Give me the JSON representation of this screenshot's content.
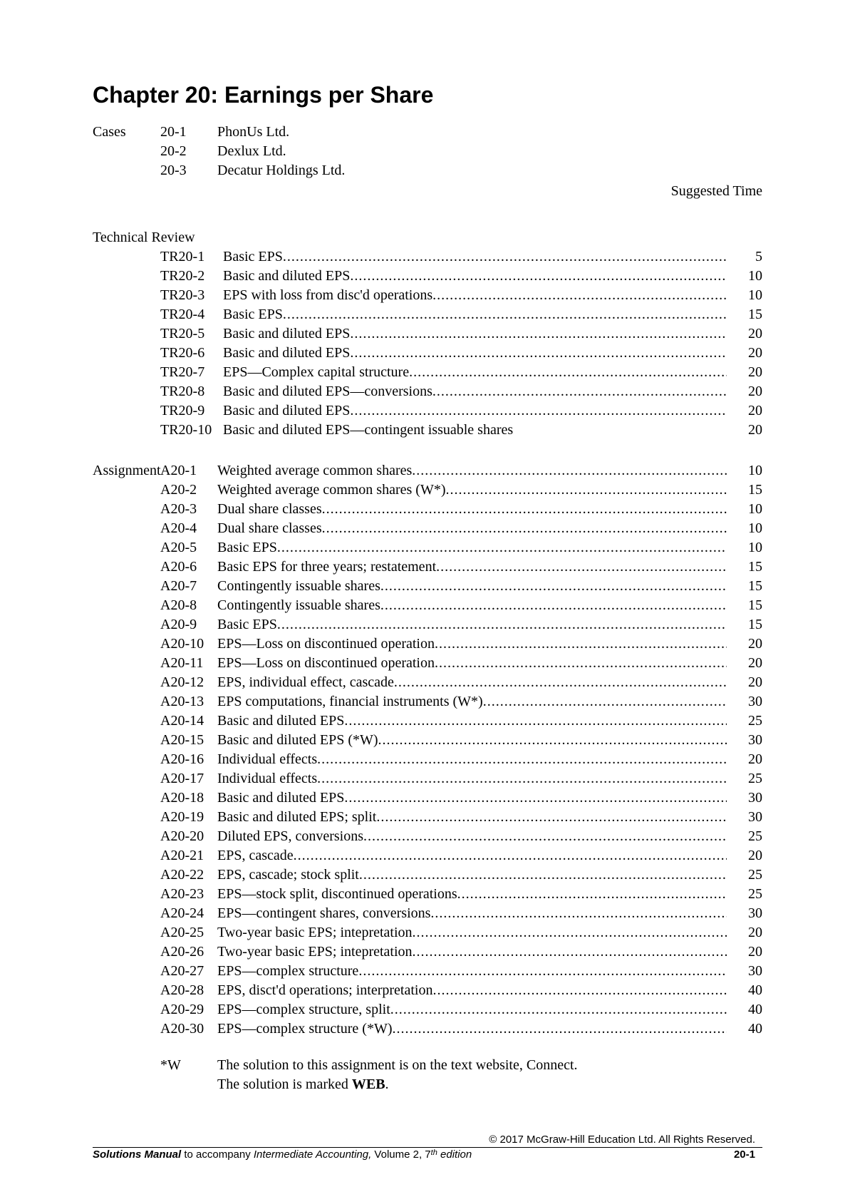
{
  "title": "Chapter 20: Earnings per Share",
  "cases_label": "Cases",
  "cases": [
    {
      "num": "20-1",
      "desc": "PhonUs Ltd."
    },
    {
      "num": "20-2",
      "desc": "Dexlux Ltd."
    },
    {
      "num": "20-3",
      "desc": "Decatur Holdings Ltd."
    }
  ],
  "suggested_time_label": "Suggested Time",
  "technical_review_label": "Technical Review",
  "technical_review": [
    {
      "code": "TR20-1",
      "desc": "Basic EPS",
      "time": "5",
      "dots": true
    },
    {
      "code": "TR20-2",
      "desc": "Basic and diluted EPS",
      "time": "10",
      "dots": true
    },
    {
      "code": "TR20-3",
      "desc": "EPS with loss from disc'd operations",
      "time": "10",
      "dots": true
    },
    {
      "code": "TR20-4",
      "desc": "Basic EPS",
      "time": "15",
      "dots": true
    },
    {
      "code": "TR20-5",
      "desc": "Basic and diluted EPS",
      "time": "20",
      "dots": true
    },
    {
      "code": "TR20-6",
      "desc": "Basic and diluted EPS",
      "time": "20",
      "dots": true
    },
    {
      "code": "TR20-7",
      "desc": "EPS—Complex capital structure",
      "time": "20",
      "dots": true
    },
    {
      "code": "TR20-8",
      "desc": "Basic and diluted EPS—conversions",
      "time": "20",
      "dots": true
    },
    {
      "code": "TR20-9",
      "desc": "Basic and diluted EPS",
      "time": "20",
      "dots": true
    },
    {
      "code": "TR20-10",
      "desc": "Basic and diluted EPS—contingent issuable shares",
      "time": "20",
      "dots": false
    }
  ],
  "assignment_label": "Assignment",
  "assignments": [
    {
      "code": "A20-1",
      "desc": "Weighted average common shares ",
      "time": "10",
      "dots": true
    },
    {
      "code": "A20-2",
      "desc": "Weighted average common shares (W*)",
      "time": "15",
      "dots": true
    },
    {
      "code": "A20-3",
      "desc": "Dual share classes",
      "time": "10",
      "dots": true
    },
    {
      "code": "A20-4",
      "desc": "Dual share classes",
      "time": "10",
      "dots": true
    },
    {
      "code": "A20-5",
      "desc": "Basic EPS",
      "time": "10",
      "dots": true
    },
    {
      "code": "A20-6",
      "desc": "Basic EPS for three years; restatement",
      "time": "15",
      "dots": true
    },
    {
      "code": "A20-7",
      "desc": "Contingently issuable shares",
      "time": "15",
      "dots": true
    },
    {
      "code": "A20-8",
      "desc": "Contingently issuable shares",
      "time": "15",
      "dots": true
    },
    {
      "code": "A20-9",
      "desc": "Basic EPS",
      "time": "15",
      "dots": true
    },
    {
      "code": "A20-10",
      "desc": "EPS—Loss on discontinued operation",
      "time": "20",
      "dots": true
    },
    {
      "code": "A20-11",
      "desc": "EPS—Loss on discontinued operation",
      "time": "20",
      "dots": true
    },
    {
      "code": "A20-12",
      "desc": "EPS, individual effect, cascade",
      "time": "20",
      "dots": true
    },
    {
      "code": "A20-13",
      "desc": "EPS computations, financial instruments (W*)",
      "time": "30",
      "dots": true
    },
    {
      "code": "A20-14",
      "desc": "Basic and diluted EPS",
      "time": "25",
      "dots": true
    },
    {
      "code": "A20-15",
      "desc": "Basic and diluted EPS (*W)",
      "time": "30",
      "dots": true
    },
    {
      "code": "A20-16",
      "desc": "Individual effects",
      "time": "20",
      "dots": true
    },
    {
      "code": "A20-17",
      "desc": "Individual effects",
      "time": "25",
      "dots": true
    },
    {
      "code": "A20-18",
      "desc": "Basic and diluted EPS",
      "time": "30",
      "dots": true
    },
    {
      "code": "A20-19",
      "desc": "Basic and diluted EPS; split",
      "time": "30",
      "dots": true
    },
    {
      "code": "A20-20",
      "desc": "Diluted EPS, conversions",
      "time": "25",
      "dots": true
    },
    {
      "code": "A20-21",
      "desc": "EPS, cascade ",
      "time": "20",
      "dots": true
    },
    {
      "code": "A20-22",
      "desc": "EPS, cascade; stock split",
      "time": "25",
      "dots": true
    },
    {
      "code": "A20-23",
      "desc": "EPS—stock split, discontinued operations",
      "time": "25",
      "dots": true
    },
    {
      "code": "A20-24",
      "desc": "EPS—contingent shares, conversions",
      "time": "30",
      "dots": true
    },
    {
      "code": "A20-25",
      "desc": "Two-year basic EPS; intepretation",
      "time": "20",
      "dots": true
    },
    {
      "code": "A20-26",
      "desc": "Two-year basic EPS; intepretation",
      "time": "20",
      "dots": true
    },
    {
      "code": "A20-27",
      "desc": "EPS—complex structure",
      "time": "30",
      "dots": true
    },
    {
      "code": "A20-28",
      "desc": "EPS, disct'd operations; interpretation",
      "time": "40",
      "dots": true
    },
    {
      "code": "A20-29",
      "desc": "EPS—complex structure, split",
      "time": "40",
      "dots": true
    },
    {
      "code": "A20-30",
      "desc": "EPS—complex structure (*W)",
      "time": "40",
      "dots": true
    }
  ],
  "footnote_mark": "*W",
  "footnote_text_1": "The solution to this assignment is on the text website, Connect. ",
  "footnote_text_2a": "The solution is marked ",
  "footnote_text_2b": "WEB",
  "footnote_text_2c": ".",
  "copyright": "© 2017 McGraw-Hill Education Ltd. All Rights Reserved.",
  "footer_left_1": "Solutions Manual",
  "footer_left_2": " to accompany ",
  "footer_left_3": "Intermediate Accounting,",
  "footer_left_4": " Volume 2, 7",
  "footer_left_5": "th",
  "footer_left_6": " edition",
  "footer_right": "20-1"
}
